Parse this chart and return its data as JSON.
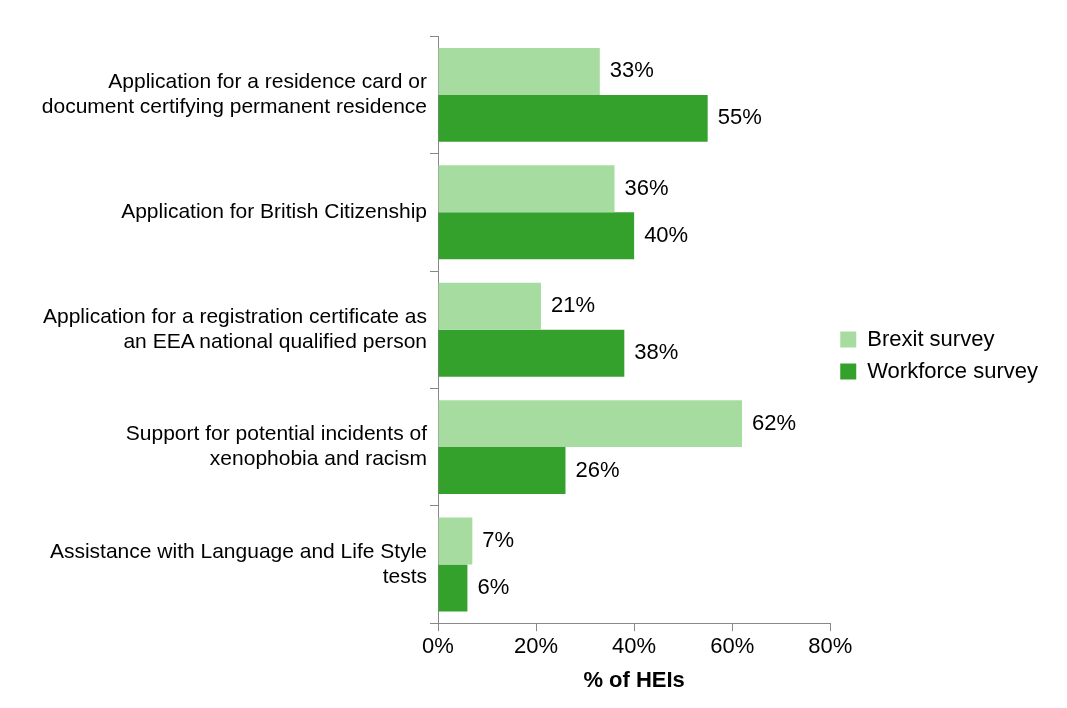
{
  "chart_data": {
    "type": "bar",
    "orientation": "horizontal",
    "xlabel": "% of HEIs",
    "categories": [
      "Application for a residence card or document certifying permanent residence",
      "Application for British Citizenship",
      "Application for a registration certificate as an EEA national qualified person",
      "Support for potential incidents of xenophobia and racism",
      "Assistance with Language and Life Style tests"
    ],
    "series": [
      {
        "name": "Brexit survey",
        "color": "#a6dca0",
        "values": [
          33,
          36,
          21,
          62,
          7
        ],
        "value_labels": [
          "33%",
          "36%",
          "21%",
          "62%",
          "7%"
        ]
      },
      {
        "name": "Workforce survey",
        "color": "#34a12d",
        "values": [
          55,
          40,
          38,
          26,
          6
        ],
        "value_labels": [
          "55%",
          "40%",
          "38%",
          "26%",
          "6%"
        ]
      }
    ],
    "xlim": [
      0,
      80
    ],
    "xticks": [
      {
        "value": 0,
        "label": "0%"
      },
      {
        "value": 20,
        "label": "20%"
      },
      {
        "value": 40,
        "label": "40%"
      },
      {
        "value": 60,
        "label": "60%"
      },
      {
        "value": 80,
        "label": "80%"
      }
    ],
    "grid": false,
    "legend": "right"
  }
}
